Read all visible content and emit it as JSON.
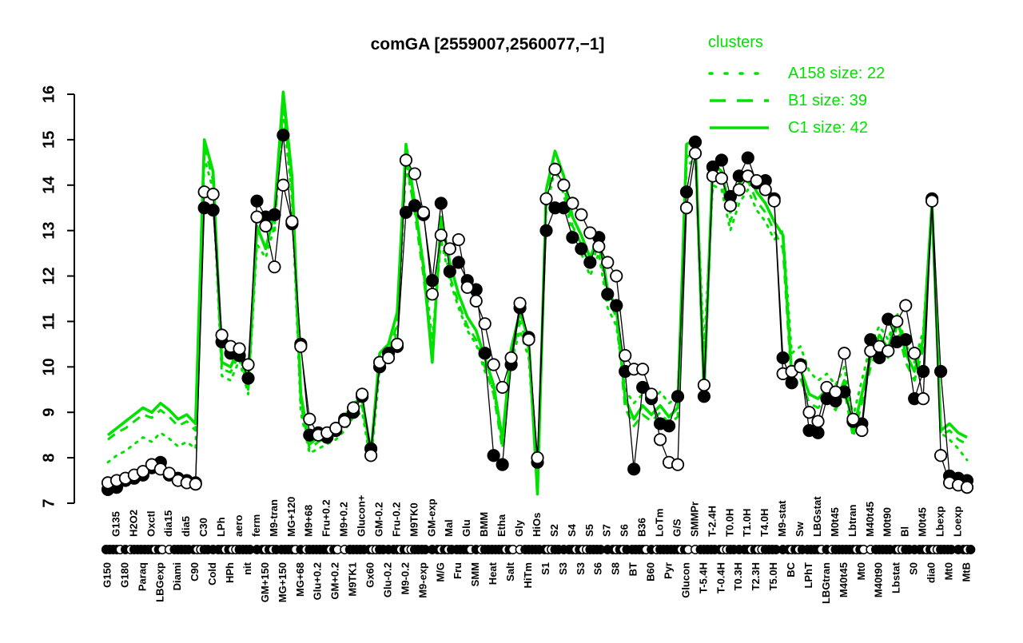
{
  "title": "comGA [2559007,2560077,−1]",
  "legend": {
    "title": "clusters",
    "color": "#00e100",
    "entries": [
      {
        "label": "A158 size: 22",
        "style": "dotted"
      },
      {
        "label": "B1 size: 39",
        "style": "dashed"
      },
      {
        "label": "C1 size: 42",
        "style": "solid"
      }
    ]
  },
  "chart_data": {
    "type": "line",
    "title": "comGA [2559007,2560077,−1]",
    "xlabel": "",
    "ylabel": "",
    "ylim": [
      7,
      16
    ],
    "yticks": [
      7,
      8,
      9,
      10,
      11,
      12,
      13,
      14,
      15,
      16
    ],
    "grid": false,
    "legend_position": "top-right",
    "x_label_rotation": 90,
    "x_label_alternating": true,
    "rug": {
      "style": "overlapping filled and open circles along baseline"
    },
    "categories": [
      "G150",
      "G135",
      "G180",
      "H2O2",
      "Paraq",
      "Oxctl",
      "LBGexp",
      "dia15",
      "Diami",
      "dia5",
      "C90",
      "C30",
      "Cold",
      "LPh",
      "HPh",
      "aero",
      "nit",
      "ferm",
      "GM+150",
      "M9-tran",
      "MG+150",
      "MG+120",
      "MG+68",
      "M9+68",
      "Glu+0.2",
      "Fru+0.2",
      "GM+0.2",
      "M9+0.2",
      "M9TK1",
      "Glucon+",
      "Gx60",
      "GM-0.2",
      "Glu-0.2",
      "Fru-0.2",
      "M9-0.2",
      "M9TK0",
      "M9-exp",
      "GM-exp",
      "M/G",
      "Mal",
      "Fru",
      "Glu",
      "SMM",
      "BMM",
      "Heat",
      "Etha",
      "Salt",
      "Gly",
      "HiTm",
      "HiOs",
      "S1",
      "S2",
      "S3",
      "S4",
      "S3",
      "S5",
      "S6",
      "S7",
      "S8",
      "S6",
      "BT",
      "B36",
      "B60",
      "LoTm",
      "Pyr",
      "G/S",
      "Glucon",
      "SMMPr",
      "T-5.4H",
      "T-2.4H",
      "T-0.4H",
      "T0.0H",
      "T0.3H",
      "T1.0H",
      "T2.3H",
      "T4.0H",
      "T5.0H",
      "M9-stat",
      "BC",
      "Sw",
      "LPhT",
      "LBGstat",
      "LBGtran",
      "M0t45",
      "M40t45",
      "Lbtran",
      "Mt0",
      "M40t45",
      "M40t90",
      "M0t90",
      "Lbstat",
      "Bl",
      "S0",
      "M0t45",
      "dia0",
      "Lbexp",
      "Mt0",
      "Loexp",
      "MtB"
    ],
    "series": [
      {
        "name": "gene filled probe",
        "kind": "points+line",
        "marker": "filled-circle",
        "color": "#000000",
        "values": [
          7.3,
          7.35,
          7.5,
          7.55,
          7.62,
          7.78,
          7.9,
          7.62,
          7.55,
          7.5,
          7.45,
          13.5,
          13.45,
          10.55,
          10.3,
          10.25,
          9.75,
          13.65,
          13.3,
          13.35,
          15.1,
          13.15,
          10.5,
          8.5,
          8.55,
          8.45,
          8.6,
          8.85,
          9.0,
          9.35,
          8.2,
          10.0,
          10.3,
          10.45,
          13.4,
          13.55,
          13.35,
          11.9,
          13.6,
          12.1,
          12.3,
          11.9,
          11.7,
          10.3,
          8.05,
          7.85,
          10.05,
          11.3,
          10.65,
          7.9,
          13.0,
          13.5,
          13.5,
          12.85,
          12.6,
          12.3,
          12.85,
          11.6,
          11.35,
          9.9,
          7.75,
          9.55,
          9.3,
          8.75,
          8.7,
          9.35,
          13.85,
          14.95,
          9.35,
          14.4,
          14.55,
          13.75,
          14.2,
          14.6,
          14.05,
          14.1,
          13.7,
          10.2,
          9.65,
          10.05,
          8.6,
          8.55,
          9.3,
          9.25,
          9.45,
          8.8,
          8.75,
          10.6,
          10.2,
          11.05,
          10.55,
          10.6,
          9.3,
          9.9,
          13.7,
          9.9,
          7.6,
          7.55,
          7.5
        ]
      },
      {
        "name": "gene open probe",
        "kind": "points+line",
        "marker": "open-circle",
        "color": "#000000",
        "values": [
          7.45,
          7.5,
          7.55,
          7.62,
          7.7,
          7.85,
          7.75,
          7.66,
          7.5,
          7.45,
          7.42,
          13.85,
          13.8,
          10.7,
          10.45,
          10.4,
          10.05,
          13.3,
          13.1,
          12.2,
          14.0,
          13.2,
          10.45,
          8.85,
          8.5,
          8.55,
          8.65,
          8.8,
          9.1,
          9.4,
          8.05,
          10.1,
          10.2,
          10.5,
          14.55,
          14.25,
          13.4,
          11.6,
          12.9,
          12.6,
          12.8,
          11.75,
          11.45,
          10.95,
          10.05,
          9.55,
          10.2,
          11.4,
          10.6,
          8.0,
          13.7,
          14.35,
          14.0,
          13.6,
          13.35,
          12.95,
          12.65,
          12.3,
          12.0,
          10.25,
          9.95,
          9.95,
          9.4,
          8.4,
          7.9,
          7.85,
          13.5,
          14.7,
          9.6,
          14.2,
          14.15,
          13.55,
          13.9,
          14.2,
          14.1,
          13.9,
          13.65,
          9.85,
          9.9,
          10.0,
          9.0,
          8.8,
          9.55,
          9.45,
          10.3,
          8.85,
          8.6,
          10.35,
          10.45,
          10.35,
          11.0,
          11.35,
          10.3,
          9.3,
          13.65,
          8.05,
          7.45,
          7.4,
          7.35
        ]
      },
      {
        "name": "C1 size: 42",
        "kind": "line",
        "style": "solid",
        "color": "#00e100",
        "values": [
          8.5,
          8.65,
          8.8,
          8.95,
          9.1,
          9.0,
          9.2,
          9.05,
          8.85,
          8.95,
          8.75,
          15.0,
          14.3,
          10.1,
          10.0,
          10.45,
          9.6,
          13.1,
          12.6,
          13.4,
          16.05,
          14.2,
          9.4,
          8.3,
          8.45,
          8.6,
          8.7,
          8.9,
          9.2,
          9.3,
          8.1,
          10.3,
          10.5,
          11.2,
          14.9,
          13.6,
          12.2,
          10.1,
          13.3,
          12.3,
          11.6,
          11.1,
          10.8,
          10.2,
          9.6,
          8.4,
          10.4,
          11.2,
          10.6,
          7.2,
          13.9,
          14.75,
          14.2,
          13.3,
          12.9,
          12.4,
          12.9,
          11.7,
          11.3,
          9.3,
          8.85,
          9.15,
          8.95,
          9.15,
          8.9,
          9.1,
          14.9,
          15.0,
          9.5,
          14.5,
          14.3,
          13.4,
          14.0,
          14.3,
          13.85,
          13.6,
          13.2,
          12.9,
          9.8,
          9.95,
          9.4,
          9.3,
          9.5,
          9.2,
          9.7,
          8.6,
          9.4,
          10.2,
          10.7,
          10.4,
          11.1,
          10.3,
          9.9,
          10.6,
          13.6,
          8.6,
          8.75,
          8.55,
          8.45
        ]
      },
      {
        "name": "B1 size: 39",
        "kind": "line",
        "style": "dashed",
        "color": "#00e100",
        "values": [
          8.4,
          8.55,
          8.65,
          8.8,
          8.95,
          8.88,
          9.05,
          8.9,
          8.7,
          8.8,
          8.6,
          14.85,
          14.1,
          9.95,
          9.88,
          10.3,
          9.5,
          12.9,
          13.2,
          13.0,
          15.8,
          13.9,
          9.2,
          8.2,
          8.35,
          8.45,
          8.55,
          8.75,
          9.05,
          9.15,
          8.0,
          10.1,
          10.3,
          10.95,
          14.6,
          13.4,
          12.0,
          10.3,
          13.0,
          12.0,
          11.4,
          10.9,
          10.6,
          10.0,
          9.4,
          8.2,
          10.2,
          11.0,
          10.4,
          7.4,
          13.7,
          14.55,
          14.0,
          13.1,
          12.7,
          12.2,
          12.7,
          11.5,
          11.1,
          9.1,
          8.7,
          8.95,
          8.8,
          9.0,
          8.75,
          8.9,
          14.6,
          14.8,
          9.3,
          14.3,
          14.1,
          13.2,
          13.8,
          14.1,
          13.65,
          13.4,
          13.0,
          12.6,
          9.6,
          9.75,
          9.2,
          9.1,
          9.3,
          9.05,
          9.5,
          8.45,
          9.2,
          10.0,
          10.5,
          10.2,
          10.9,
          10.1,
          9.7,
          10.4,
          13.5,
          8.5,
          8.6,
          8.4,
          8.3
        ]
      },
      {
        "name": "A158 size: 22",
        "kind": "line",
        "style": "dotted",
        "color": "#00e100",
        "values": [
          7.9,
          8.05,
          8.15,
          8.3,
          8.45,
          8.35,
          8.55,
          8.42,
          8.25,
          8.35,
          8.2,
          14.6,
          13.9,
          9.8,
          9.7,
          10.15,
          9.4,
          12.7,
          12.4,
          13.1,
          15.6,
          13.7,
          9.0,
          8.1,
          8.2,
          8.3,
          8.4,
          8.6,
          8.9,
          9.0,
          7.9,
          9.95,
          10.15,
          10.8,
          14.4,
          13.5,
          12.3,
          10.6,
          12.8,
          11.9,
          11.3,
          10.8,
          10.5,
          9.9,
          9.5,
          8.3,
          10.1,
          10.8,
          10.2,
          7.6,
          13.5,
          14.35,
          13.8,
          12.9,
          12.5,
          12.0,
          12.5,
          11.3,
          10.9,
          9.5,
          9.2,
          9.4,
          9.25,
          9.45,
          9.2,
          9.35,
          14.4,
          14.6,
          10.4,
          14.0,
          13.9,
          13.0,
          13.6,
          13.9,
          13.45,
          13.2,
          12.8,
          13.0,
          10.3,
          10.45,
          9.9,
          9.7,
          9.85,
          9.6,
          10.0,
          8.9,
          9.7,
          10.5,
          10.9,
          10.6,
          11.2,
          10.5,
          10.1,
          10.8,
          13.55,
          8.55,
          8.4,
          8.2,
          7.95
        ]
      }
    ]
  }
}
